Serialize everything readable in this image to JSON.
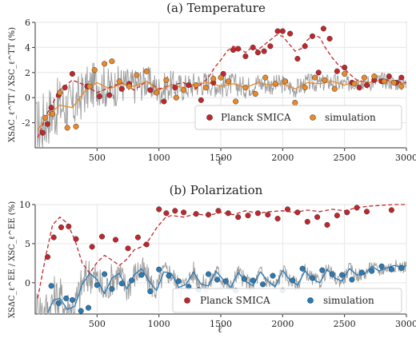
{
  "chart_data": [
    {
      "type": "scatter",
      "title": "(a) Temperature",
      "xlabel": "ℓ′",
      "ylabel": "XSΔC_ℓ^TT / XSC_ℓ^TT (%)",
      "xlim": [
        0,
        3000
      ],
      "ylim": [
        -4,
        6
      ],
      "xticks": [
        500,
        1000,
        1500,
        2000,
        2500,
        3000
      ],
      "yticks": [
        -2,
        0,
        2,
        4,
        6
      ],
      "grid": true,
      "legend_position": "bottom-right",
      "series": [
        {
          "name": "Planck SMICA",
          "kind": "points",
          "color": "#c0272d",
          "x": [
            60,
            100,
            130,
            190,
            240,
            300,
            420,
            520,
            600,
            700,
            760,
            930,
            1040,
            1130,
            1240,
            1340,
            1440,
            1520,
            1600,
            1640,
            1700,
            1760,
            1800,
            1850,
            1900,
            1960,
            2000,
            2060,
            2120,
            2180,
            2240,
            2290,
            2330,
            2380,
            2440,
            2500,
            2560,
            2620,
            2680,
            2740,
            2800,
            2860,
            2920,
            2960
          ],
          "y": [
            -2.8,
            -2.1,
            -0.8,
            0.2,
            0.8,
            1.9,
            0.9,
            0.1,
            0.2,
            0.7,
            1.1,
            0.6,
            -0.3,
            0.8,
            1.0,
            -0.2,
            1.2,
            1.9,
            3.8,
            3.9,
            3.3,
            4.0,
            3.6,
            3.7,
            4.1,
            5.3,
            5.3,
            5.1,
            3.1,
            4.1,
            4.9,
            2.0,
            5.5,
            4.7,
            2.1,
            2.4,
            1.2,
            0.8,
            1.0,
            1.4,
            1.3,
            1.7,
            1.2,
            1.6
          ]
        },
        {
          "name": "simulation",
          "kind": "points",
          "color": "#e8892a",
          "x": [
            80,
            140,
            200,
            260,
            330,
            440,
            480,
            560,
            620,
            680,
            760,
            820,
            900,
            980,
            1060,
            1140,
            1200,
            1300,
            1380,
            1440,
            1500,
            1560,
            1620,
            1700,
            1780,
            1860,
            1940,
            2020,
            2100,
            2180,
            2260,
            2340,
            2420,
            2500,
            2580,
            2660,
            2740,
            2820,
            2900,
            2960
          ],
          "y": [
            -1.6,
            -1.3,
            0.4,
            -2.4,
            -2.3,
            0.9,
            2.2,
            2.7,
            2.9,
            1.3,
            0.9,
            1.8,
            2.1,
            0.4,
            1.4,
            0.0,
            0.6,
            1.0,
            0.8,
            1.5,
            1.6,
            1.3,
            -0.3,
            0.8,
            0.3,
            1.6,
            1.1,
            1.3,
            -0.4,
            0.8,
            1.6,
            1.4,
            0.7,
            1.9,
            1.1,
            1.6,
            1.7,
            1.3,
            1.2,
            0.9
          ]
        },
        {
          "name": "",
          "kind": "dashed-line",
          "color": "#c0272d",
          "x": [
            20,
            100,
            200,
            300,
            400,
            500,
            600,
            700,
            800,
            900,
            1000,
            1100,
            1200,
            1300,
            1400,
            1450,
            1500,
            1550,
            1600,
            1650,
            1700,
            1750,
            1800,
            1850,
            1900,
            1950,
            2000,
            2050,
            2100,
            2150,
            2200,
            2250,
            2300,
            2350,
            2400,
            2450,
            2500,
            2550,
            2600,
            2700,
            2800,
            2900,
            3000
          ],
          "y": [
            -3.2,
            -1.2,
            0.6,
            1.4,
            1.0,
            0.4,
            0.8,
            1.2,
            0.6,
            1.3,
            0.7,
            1.0,
            1.2,
            0.7,
            1.6,
            2.4,
            3.0,
            3.7,
            4.1,
            3.9,
            3.6,
            4.0,
            3.8,
            4.2,
            4.6,
            5.0,
            4.9,
            4.3,
            3.7,
            3.9,
            4.6,
            5.0,
            4.8,
            3.9,
            3.2,
            2.6,
            2.3,
            1.8,
            1.4,
            1.2,
            1.5,
            1.3,
            1.2
          ]
        },
        {
          "name": "",
          "kind": "solid-line",
          "color": "#e8892a",
          "x": [
            20,
            100,
            200,
            300,
            400,
            500,
            600,
            700,
            800,
            900,
            1000,
            1100,
            1200,
            1300,
            1400,
            1500,
            1600,
            1700,
            1800,
            1900,
            2000,
            2100,
            2200,
            2300,
            2400,
            2500,
            2600,
            2700,
            2800,
            2900,
            3000
          ],
          "y": [
            -2.6,
            -1.4,
            -0.6,
            -0.8,
            0.5,
            1.2,
            0.7,
            1.1,
            0.9,
            1.3,
            0.6,
            1.0,
            0.8,
            1.1,
            1.2,
            0.9,
            1.1,
            0.8,
            1.2,
            1.0,
            1.1,
            0.7,
            1.2,
            1.1,
            1.3,
            1.0,
            1.3,
            1.2,
            1.4,
            1.2,
            1.1
          ]
        }
      ]
    },
    {
      "type": "scatter",
      "title": "(b) Polarization",
      "xlabel": "ℓ′",
      "ylabel": "XSΔC_ℓ^EE / XSC_ℓ^EE (%)",
      "xlim": [
        0,
        3000
      ],
      "ylim": [
        -4,
        10
      ],
      "xticks": [
        500,
        1000,
        1500,
        2000,
        2500,
        3000
      ],
      "yticks": [
        0,
        5,
        10
      ],
      "grid": true,
      "legend_position": "bottom-right",
      "series": [
        {
          "name": "Planck SMICA",
          "kind": "points",
          "color": "#c0272d",
          "x": [
            100,
            150,
            210,
            270,
            330,
            460,
            540,
            650,
            750,
            830,
            900,
            1000,
            1060,
            1130,
            1200,
            1300,
            1400,
            1480,
            1560,
            1640,
            1720,
            1800,
            1880,
            1960,
            2040,
            2120,
            2200,
            2280,
            2360,
            2440,
            2520,
            2600,
            2680,
            2760,
            2880
          ],
          "y": [
            3.3,
            5.8,
            7.1,
            7.2,
            5.6,
            4.6,
            5.9,
            5.5,
            4.4,
            5.8,
            4.9,
            9.4,
            8.9,
            9.2,
            9.0,
            8.8,
            8.7,
            9.2,
            8.9,
            8.4,
            8.6,
            8.9,
            8.7,
            8.2,
            9.4,
            9.0,
            7.8,
            8.4,
            7.4,
            8.6,
            9.0,
            9.6,
            9.1,
            10.2,
            9.3
          ]
        },
        {
          "name": "simulation",
          "kind": "points",
          "color": "#2a7ab5",
          "x": [
            130,
            190,
            250,
            300,
            370,
            430,
            500,
            560,
            620,
            700,
            780,
            860,
            930,
            1000,
            1080,
            1160,
            1240,
            1320,
            1400,
            1470,
            1540,
            1620,
            1690,
            1760,
            1840,
            1920,
            2000,
            2080,
            2160,
            2240,
            2320,
            2400,
            2480,
            2560,
            2640,
            2720,
            2800,
            2880,
            2960
          ],
          "y": [
            -0.4,
            -2.6,
            -2.0,
            -2.2,
            -3.6,
            -3.2,
            -0.3,
            1.1,
            -0.8,
            -0.1,
            0.3,
            1.0,
            -1.1,
            1.7,
            0.9,
            0.2,
            -0.5,
            -0.9,
            1.1,
            0.4,
            0.2,
            -1.0,
            0.5,
            0.3,
            -0.2,
            0.9,
            -1.0,
            0.3,
            1.8,
            0.6,
            1.6,
            1.1,
            1.0,
            0.4,
            1.3,
            1.5,
            2.1,
            1.7,
            1.9
          ]
        },
        {
          "name": "",
          "kind": "dashed-line",
          "color": "#c0272d",
          "x": [
            20,
            80,
            140,
            200,
            260,
            320,
            380,
            440,
            500,
            560,
            620,
            680,
            740,
            800,
            860,
            920,
            980,
            1050,
            1100,
            1200,
            1300,
            1400,
            1500,
            1600,
            1700,
            1800,
            1900,
            2000,
            2100,
            2200,
            2300,
            2400,
            2500,
            2600,
            2700,
            2800,
            2900,
            3000
          ],
          "y": [
            -2.0,
            3.0,
            7.4,
            8.4,
            7.6,
            5.5,
            2.5,
            1.2,
            2.6,
            3.5,
            2.9,
            2.2,
            3.0,
            4.2,
            4.6,
            5.5,
            7.0,
            8.3,
            8.6,
            8.4,
            8.8,
            8.6,
            9.0,
            8.7,
            9.2,
            8.9,
            9.1,
            9.2,
            9.0,
            9.3,
            9.1,
            9.4,
            9.2,
            9.6,
            9.8,
            9.9,
            10.0,
            10.0
          ]
        },
        {
          "name": "",
          "kind": "solid-line",
          "color": "#2a7ab5",
          "x": [
            100,
            150,
            200,
            260,
            320,
            380,
            440,
            500,
            560,
            620,
            680,
            740,
            800,
            860,
            920,
            980,
            1040,
            1100,
            1160,
            1220,
            1280,
            1340,
            1400,
            1460,
            1520,
            1580,
            1640,
            1700,
            1760,
            1820,
            1880,
            1940,
            2000,
            2060,
            2120,
            2180,
            2240,
            2300,
            2360,
            2420,
            2480,
            2540,
            2600,
            2660,
            2720,
            2780,
            2840,
            2900,
            2960,
            3000
          ],
          "y": [
            -3.8,
            -2.2,
            -2.0,
            -3.4,
            -3.0,
            -0.2,
            1.2,
            0.4,
            -1.4,
            0.6,
            1.2,
            -0.8,
            1.0,
            1.8,
            0.2,
            -1.0,
            1.4,
            1.2,
            -0.6,
            -0.2,
            1.4,
            -0.2,
            -0.4,
            1.5,
            0.4,
            -0.6,
            1.3,
            0.2,
            -0.4,
            1.4,
            0.2,
            -0.5,
            1.6,
            0.3,
            -0.3,
            1.5,
            0.5,
            0.0,
            1.7,
            0.6,
            0.2,
            1.8,
            1.0,
            1.1,
            2.1,
            1.5,
            1.9,
            2.2,
            2.0,
            2.2
          ]
        }
      ]
    }
  ]
}
